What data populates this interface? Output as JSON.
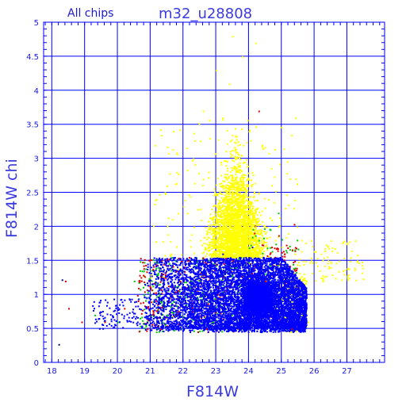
{
  "chart_data": {
    "type": "scatter",
    "title": "m32_u28808",
    "subtitle": "All chips",
    "xlabel": "F814W",
    "ylabel": "F814W chi",
    "xlim": [
      17.75,
      28.15
    ],
    "ylim": [
      0,
      5
    ],
    "grid": true,
    "x_ticks": [
      "18",
      "19",
      "20",
      "21",
      "22",
      "23",
      "24",
      "25",
      "26",
      "27"
    ],
    "y_ticks": [
      "0",
      "0.5",
      "1",
      "1.5",
      "2",
      "2.5",
      "3",
      "3.5",
      "4",
      "4.5",
      "5"
    ],
    "series": [
      {
        "color": "#ffff00",
        "description": "high-chi stars forming a broad cone above the blue clump",
        "points": [
          [
            21.5,
            2.6
          ],
          [
            21.8,
            2.8
          ],
          [
            22.0,
            2.3
          ],
          [
            22.3,
            3.0
          ],
          [
            22.6,
            2.7
          ],
          [
            22.8,
            3.3
          ],
          [
            23.0,
            2.1
          ],
          [
            23.1,
            2.5
          ],
          [
            23.2,
            3.6
          ],
          [
            23.3,
            2.9
          ],
          [
            23.4,
            4.1
          ],
          [
            23.5,
            2.2
          ],
          [
            23.6,
            3.1
          ],
          [
            23.7,
            2.6
          ],
          [
            23.8,
            4.5
          ],
          [
            23.9,
            2.3
          ],
          [
            24.0,
            3.4
          ],
          [
            24.1,
            2.8
          ],
          [
            24.2,
            2.0
          ],
          [
            24.3,
            2.5
          ],
          [
            24.4,
            3.2
          ],
          [
            24.5,
            1.9
          ],
          [
            24.6,
            2.4
          ],
          [
            24.7,
            2.1
          ],
          [
            24.8,
            1.8
          ],
          [
            24.9,
            2.0
          ],
          [
            25.0,
            1.7
          ],
          [
            25.2,
            1.9
          ],
          [
            25.4,
            1.6
          ],
          [
            25.6,
            1.8
          ],
          [
            25.9,
            1.5
          ],
          [
            26.2,
            1.6
          ],
          [
            26.5,
            1.4
          ],
          [
            26.9,
            1.3
          ],
          [
            27.3,
            1.5
          ],
          [
            22.6,
            3.7
          ],
          [
            23.0,
            4.3
          ],
          [
            23.5,
            4.8
          ],
          [
            24.2,
            4.7
          ],
          [
            22.9,
            1.7
          ],
          [
            23.4,
            1.6
          ],
          [
            24.0,
            1.6
          ],
          [
            22.2,
            1.8
          ],
          [
            25.3,
            0.9
          ],
          [
            25.6,
            0.7
          ],
          [
            25.8,
            0.6
          ],
          [
            21.0,
            1.3
          ],
          [
            21.3,
            1.1
          ]
        ]
      },
      {
        "color": "#0000ff",
        "description": "dense clump of well-fit stars",
        "points": [
          [
            21.0,
            0.8
          ],
          [
            21.3,
            1.1
          ],
          [
            21.6,
            0.9
          ],
          [
            22.0,
            1.2
          ],
          [
            22.4,
            0.7
          ],
          [
            22.8,
            1.0
          ],
          [
            23.1,
            0.8
          ],
          [
            23.4,
            1.3
          ],
          [
            23.7,
            0.9
          ],
          [
            24.0,
            1.0
          ],
          [
            24.2,
            0.8
          ],
          [
            24.4,
            0.9
          ],
          [
            24.6,
            1.1
          ],
          [
            24.8,
            0.7
          ],
          [
            25.0,
            1.2
          ],
          [
            25.2,
            0.8
          ],
          [
            25.4,
            0.6
          ],
          [
            25.6,
            0.9
          ],
          [
            22.5,
            1.5
          ],
          [
            23.2,
            1.6
          ],
          [
            24.1,
            1.7
          ],
          [
            24.7,
            1.5
          ],
          [
            20.6,
            0.6
          ],
          [
            21.8,
            0.5
          ]
        ]
      },
      {
        "color": "#00cc00",
        "description": "green chip stars",
        "points": [
          [
            19.3,
            0.7
          ],
          [
            20.0,
            0.6
          ],
          [
            20.8,
            1.0
          ],
          [
            21.2,
            1.3
          ],
          [
            21.7,
            0.9
          ],
          [
            22.2,
            1.1
          ],
          [
            22.9,
            0.6
          ],
          [
            23.6,
            1.4
          ],
          [
            24.3,
            1.8
          ],
          [
            24.9,
            2.2
          ],
          [
            20.5,
            1.2
          ],
          [
            21.5,
            0.7
          ]
        ]
      },
      {
        "color": "#dd0000",
        "description": "red chip stars",
        "points": [
          [
            18.4,
            1.2
          ],
          [
            18.5,
            0.8
          ],
          [
            18.9,
            0.6
          ],
          [
            19.6,
            0.6
          ],
          [
            20.2,
            0.8
          ],
          [
            21.0,
            1.1
          ],
          [
            21.9,
            1.2
          ],
          [
            22.7,
            0.5
          ],
          [
            23.5,
            1.5
          ],
          [
            24.5,
            1.2
          ],
          [
            25.3,
            0.5
          ],
          [
            24.3,
            3.7
          ]
        ]
      }
    ]
  }
}
